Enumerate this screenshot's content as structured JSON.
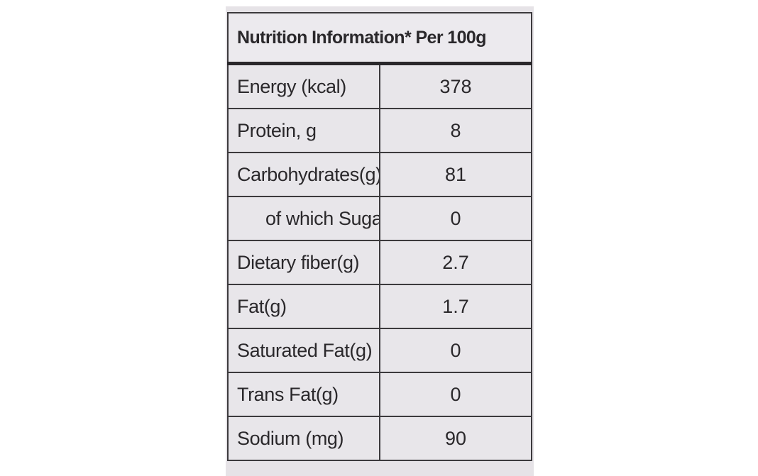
{
  "table": {
    "header": "Nutrition Information* Per 100g",
    "rows": [
      {
        "nutrient": "Energy (kcal)",
        "value": "378",
        "indented": false
      },
      {
        "nutrient": "Protein, g",
        "value": "8",
        "indented": false
      },
      {
        "nutrient": "Carbohydrates(g)",
        "value": "81",
        "indented": false
      },
      {
        "nutrient": "of which Sugars(g)",
        "value": "0",
        "indented": true
      },
      {
        "nutrient": "Dietary fiber(g)",
        "value": "2.7",
        "indented": false
      },
      {
        "nutrient": "Fat(g)",
        "value": "1.7",
        "indented": false
      },
      {
        "nutrient": "Saturated Fat(g)",
        "value": "0",
        "indented": false
      },
      {
        "nutrient": "Trans Fat(g)",
        "value": "0",
        "indented": false
      },
      {
        "nutrient": "Sodium (mg)",
        "value": "90",
        "indented": false
      }
    ]
  }
}
